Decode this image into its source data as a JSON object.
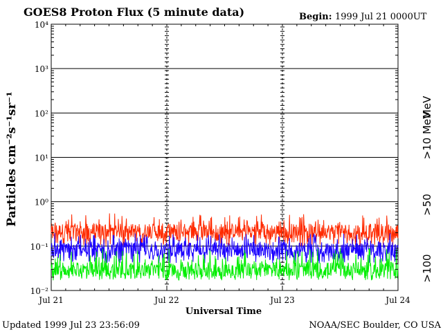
{
  "chart_data": {
    "type": "line",
    "title": "GOES8 Proton Flux (5 minute data)",
    "begin_label": "Begin:",
    "begin_value": "1999 Jul 21 0000UT",
    "xlabel": "Universal Time",
    "ylabel": "Particles cm⁻²s⁻¹sr⁻¹",
    "y_scale": "log",
    "ylim": [
      0.01,
      10000
    ],
    "y_ticks": [
      "10⁴",
      "10³",
      "10²",
      "10¹",
      "10⁰",
      "10⁻¹",
      "10⁻²"
    ],
    "x_ticks": [
      "Jul 21",
      "Jul 22",
      "Jul 23",
      "Jul 24"
    ],
    "xlim": [
      "1999-07-21",
      "1999-07-24"
    ],
    "grid": true,
    "series": [
      {
        "name": ">10 MeV",
        "color": "#ff2a00",
        "typical": 0.22,
        "min": 0.1,
        "max": 0.55
      },
      {
        "name": ">50",
        "color": "#1a00ff",
        "typical": 0.085,
        "min": 0.04,
        "max": 0.2
      },
      {
        "name": ">100",
        "color": "#00ee00",
        "typical": 0.03,
        "min": 0.017,
        "max": 0.09
      }
    ],
    "legend_unit": "MeV",
    "legend_placement": "right"
  },
  "footer": {
    "updated": "Updated 1999 Jul 23 23:56:09",
    "source": "NOAA/SEC Boulder, CO USA"
  }
}
